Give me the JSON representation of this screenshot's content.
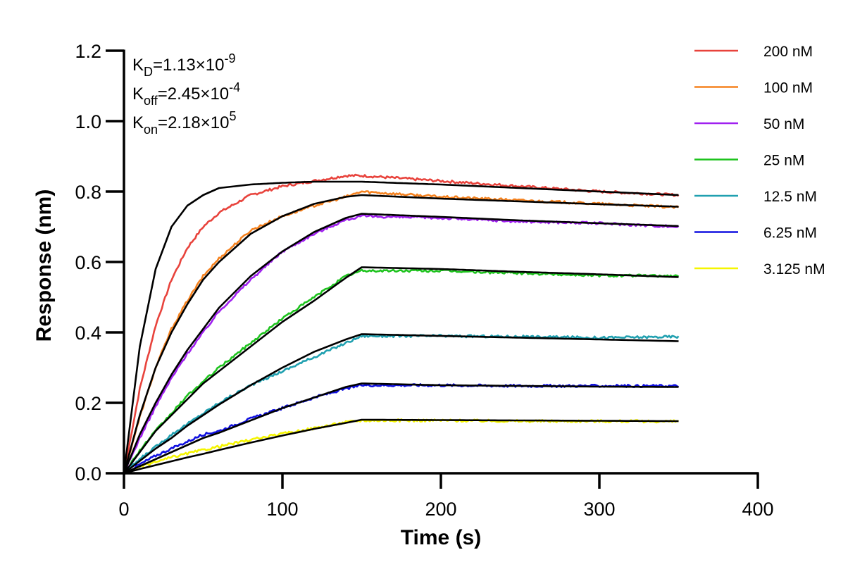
{
  "chart_data": {
    "type": "line",
    "title": "",
    "xlabel": "Time (s)",
    "ylabel": "Response (nm)",
    "xlim": [
      0,
      400
    ],
    "ylim": [
      0,
      1.2
    ],
    "xticks": [
      0,
      100,
      200,
      300,
      400
    ],
    "yticks": [
      0.0,
      0.2,
      0.4,
      0.6,
      0.8,
      1.0,
      1.2
    ],
    "xtick_labels": [
      "0",
      "100",
      "200",
      "300",
      "400"
    ],
    "ytick_labels": [
      "0.0",
      "0.2",
      "0.4",
      "0.6",
      "0.8",
      "1.0",
      "1.2"
    ],
    "grid": false,
    "legend_position": "right",
    "association_end": 150,
    "dissociation_end": 350,
    "annotations": [
      {
        "prefix": "K",
        "sub": "D",
        "mid": "=1.13×10",
        "sup": "-9"
      },
      {
        "prefix": "K",
        "sub": "off",
        "mid": "=2.45×10",
        "sup": "-4"
      },
      {
        "prefix": "K",
        "sub": "on",
        "mid": "=2.18×10",
        "sup": "5"
      }
    ],
    "series": [
      {
        "name": "200 nM",
        "color": "#e8433c",
        "x": [
          0,
          10,
          20,
          30,
          40,
          50,
          60,
          80,
          100,
          120,
          140,
          150,
          200,
          250,
          300,
          350
        ],
        "values": [
          0,
          0.24,
          0.42,
          0.55,
          0.64,
          0.7,
          0.74,
          0.79,
          0.815,
          0.83,
          0.845,
          0.845,
          0.83,
          0.815,
          0.8,
          0.79
        ],
        "fit": [
          0,
          0.36,
          0.58,
          0.7,
          0.76,
          0.79,
          0.81,
          0.82,
          0.825,
          0.828,
          0.828,
          0.828,
          0.82,
          0.81,
          0.8,
          0.79
        ]
      },
      {
        "name": "100 nM",
        "color": "#f5821f",
        "x": [
          0,
          10,
          20,
          30,
          40,
          50,
          60,
          80,
          100,
          120,
          140,
          150,
          200,
          250,
          300,
          350
        ],
        "values": [
          0,
          0.16,
          0.3,
          0.41,
          0.49,
          0.56,
          0.61,
          0.69,
          0.73,
          0.76,
          0.785,
          0.8,
          0.785,
          0.775,
          0.765,
          0.755
        ],
        "fit": [
          0,
          0.165,
          0.3,
          0.4,
          0.48,
          0.55,
          0.6,
          0.68,
          0.73,
          0.765,
          0.785,
          0.79,
          0.78,
          0.772,
          0.764,
          0.757
        ]
      },
      {
        "name": "50 nM",
        "color": "#a020f0",
        "x": [
          0,
          10,
          20,
          30,
          40,
          50,
          60,
          80,
          100,
          120,
          140,
          150,
          200,
          250,
          300,
          350
        ],
        "values": [
          0,
          0.1,
          0.19,
          0.27,
          0.34,
          0.4,
          0.46,
          0.55,
          0.63,
          0.68,
          0.72,
          0.73,
          0.725,
          0.715,
          0.71,
          0.7
        ],
        "fit": [
          0,
          0.11,
          0.2,
          0.28,
          0.35,
          0.41,
          0.47,
          0.56,
          0.63,
          0.685,
          0.725,
          0.737,
          0.728,
          0.718,
          0.71,
          0.702
        ]
      },
      {
        "name": "25 nM",
        "color": "#1ec31e",
        "x": [
          0,
          10,
          20,
          30,
          40,
          50,
          60,
          80,
          100,
          120,
          140,
          150,
          200,
          250,
          300,
          350
        ],
        "values": [
          0,
          0.065,
          0.12,
          0.17,
          0.22,
          0.26,
          0.3,
          0.37,
          0.44,
          0.5,
          0.56,
          0.575,
          0.575,
          0.568,
          0.562,
          0.56
        ],
        "fit": [
          0,
          0.06,
          0.12,
          0.165,
          0.21,
          0.255,
          0.29,
          0.36,
          0.43,
          0.49,
          0.555,
          0.585,
          0.58,
          0.572,
          0.565,
          0.557
        ]
      },
      {
        "name": "12.5 nM",
        "color": "#20a0b0",
        "x": [
          0,
          10,
          20,
          30,
          40,
          50,
          60,
          80,
          100,
          120,
          140,
          150,
          200,
          250,
          300,
          350
        ],
        "values": [
          0,
          0.04,
          0.075,
          0.11,
          0.14,
          0.17,
          0.2,
          0.25,
          0.29,
          0.33,
          0.37,
          0.39,
          0.39,
          0.388,
          0.385,
          0.388
        ],
        "fit": [
          0,
          0.035,
          0.07,
          0.1,
          0.135,
          0.165,
          0.195,
          0.25,
          0.3,
          0.345,
          0.38,
          0.395,
          0.39,
          0.385,
          0.38,
          0.375
        ]
      },
      {
        "name": "6.25 nM",
        "color": "#1010e0",
        "x": [
          0,
          10,
          20,
          30,
          40,
          50,
          60,
          80,
          100,
          120,
          140,
          150,
          200,
          250,
          300,
          350
        ],
        "values": [
          0,
          0.025,
          0.05,
          0.07,
          0.09,
          0.11,
          0.12,
          0.155,
          0.185,
          0.215,
          0.24,
          0.25,
          0.25,
          0.248,
          0.248,
          0.248
        ],
        "fit": [
          0,
          0.02,
          0.04,
          0.06,
          0.08,
          0.1,
          0.115,
          0.15,
          0.185,
          0.215,
          0.245,
          0.255,
          0.25,
          0.248,
          0.246,
          0.245
        ]
      },
      {
        "name": "3.125 nM",
        "color": "#f5f500",
        "x": [
          0,
          10,
          20,
          30,
          40,
          50,
          60,
          80,
          100,
          120,
          140,
          150,
          200,
          250,
          300,
          350
        ],
        "values": [
          0,
          0.018,
          0.032,
          0.045,
          0.056,
          0.066,
          0.076,
          0.095,
          0.112,
          0.128,
          0.145,
          0.15,
          0.15,
          0.148,
          0.148,
          0.147
        ],
        "fit": [
          0,
          0.012,
          0.023,
          0.034,
          0.045,
          0.055,
          0.066,
          0.087,
          0.107,
          0.126,
          0.143,
          0.152,
          0.151,
          0.15,
          0.149,
          0.148
        ]
      }
    ],
    "fit_color": "#000000"
  }
}
